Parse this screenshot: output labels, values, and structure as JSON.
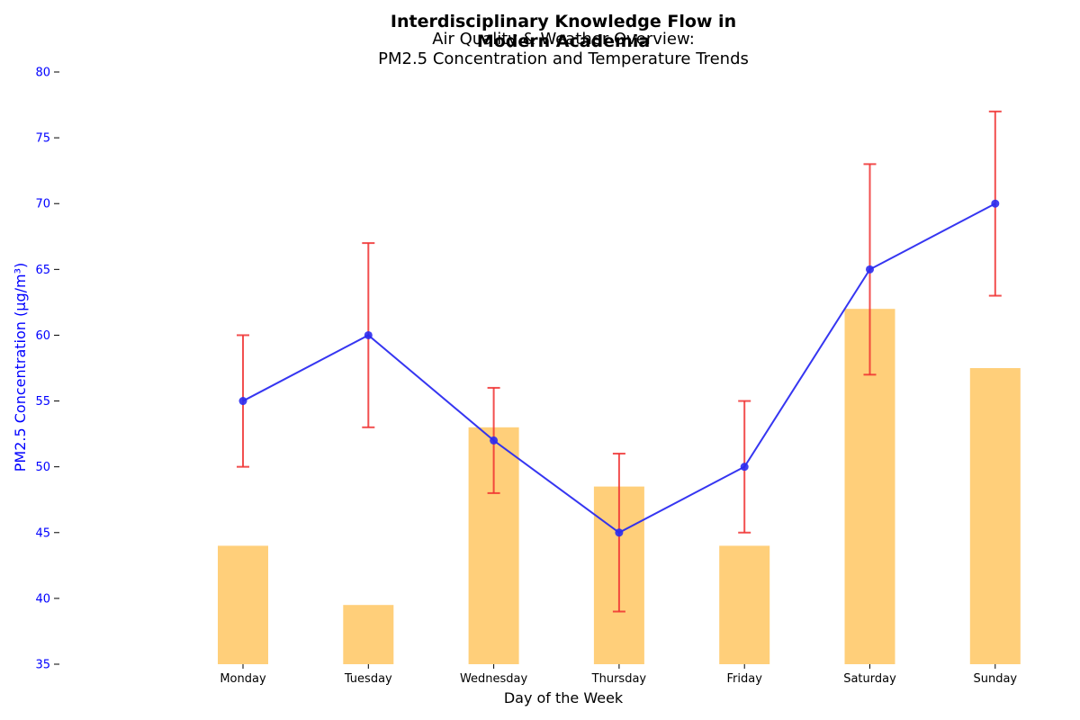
{
  "chart_data": {
    "type": "bar",
    "suptitle_lines": [
      "Interdisciplinary Knowledge Flow in",
      "Modern Academia"
    ],
    "title_lines": [
      "Air Quality & Weather Overview:",
      "PM2.5 Concentration and Temperature Trends"
    ],
    "xlabel": "Day of the Week",
    "ylabel": "PM2.5 Concentration (µg/m³)",
    "categories": [
      "Monday",
      "Tuesday",
      "Wednesday",
      "Thursday",
      "Friday",
      "Saturday",
      "Sunday"
    ],
    "ylim": [
      35,
      80
    ],
    "yticks": [
      35,
      40,
      45,
      50,
      55,
      60,
      65,
      70,
      75,
      80
    ],
    "grid": false,
    "series": [
      {
        "type": "bar",
        "values": [
          44,
          39.5,
          53,
          48.5,
          44,
          62,
          57.5
        ],
        "color": "#ffcf7a"
      },
      {
        "type": "line",
        "values": [
          55,
          60,
          52,
          45,
          50,
          65,
          70
        ],
        "error_lower": [
          50,
          53,
          48,
          39,
          45,
          57,
          63
        ],
        "error_upper": [
          60,
          67,
          56,
          51,
          55,
          73,
          77
        ],
        "color": "#2b2bf0",
        "error_color": "#f03030"
      }
    ],
    "axis_color": "#0000ff"
  }
}
